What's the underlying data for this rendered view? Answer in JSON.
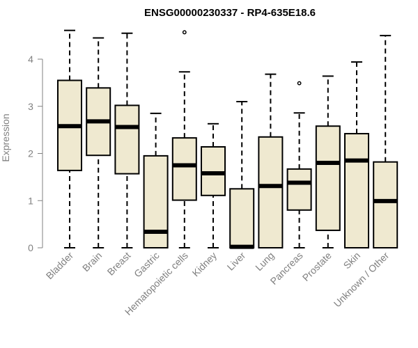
{
  "chart_data": {
    "type": "boxplot",
    "title": "ENSG00000230337 - RP4-635E18.6",
    "ylabel": "Expression",
    "xlabel": "",
    "ylim": [
      0,
      4.75
    ],
    "yticks": [
      0,
      1,
      2,
      3,
      4
    ],
    "box_color": "#efe9d0",
    "categories": [
      "Bladder",
      "Brain",
      "Breast",
      "Gastric",
      "Hematopoietic cells",
      "Kidney",
      "Liver",
      "Lung",
      "Pancreas",
      "Prostate",
      "Skin",
      "Unknown / Other"
    ],
    "boxes": [
      {
        "min": 0.0,
        "q1": 1.64,
        "median": 2.58,
        "q3": 3.55,
        "max": 4.61,
        "outliers": []
      },
      {
        "min": 0.0,
        "q1": 1.96,
        "median": 2.68,
        "q3": 3.39,
        "max": 4.45,
        "outliers": []
      },
      {
        "min": 0.0,
        "q1": 1.57,
        "median": 2.56,
        "q3": 3.02,
        "max": 4.55,
        "outliers": []
      },
      {
        "min": 0.0,
        "q1": 0.0,
        "median": 0.34,
        "q3": 1.95,
        "max": 2.85,
        "outliers": []
      },
      {
        "min": 0.0,
        "q1": 1.01,
        "median": 1.75,
        "q3": 2.33,
        "max": 3.73,
        "outliers": [
          4.57
        ]
      },
      {
        "min": 0.0,
        "q1": 1.11,
        "median": 1.58,
        "q3": 2.14,
        "max": 2.63,
        "outliers": []
      },
      {
        "min": 0.0,
        "q1": 0.0,
        "median": 0.02,
        "q3": 1.25,
        "max": 3.1,
        "outliers": []
      },
      {
        "min": 0.0,
        "q1": 0.0,
        "median": 1.31,
        "q3": 2.35,
        "max": 3.68,
        "outliers": []
      },
      {
        "min": 0.0,
        "q1": 0.8,
        "median": 1.38,
        "q3": 1.67,
        "max": 2.86,
        "outliers": [
          3.49
        ]
      },
      {
        "min": 0.0,
        "q1": 0.37,
        "median": 1.8,
        "q3": 2.58,
        "max": 3.64,
        "outliers": []
      },
      {
        "min": 0.0,
        "q1": 0.0,
        "median": 1.85,
        "q3": 2.42,
        "max": 3.94,
        "outliers": []
      },
      {
        "min": 0.0,
        "q1": 0.0,
        "median": 0.99,
        "q3": 1.82,
        "max": 4.5,
        "outliers": []
      }
    ]
  }
}
